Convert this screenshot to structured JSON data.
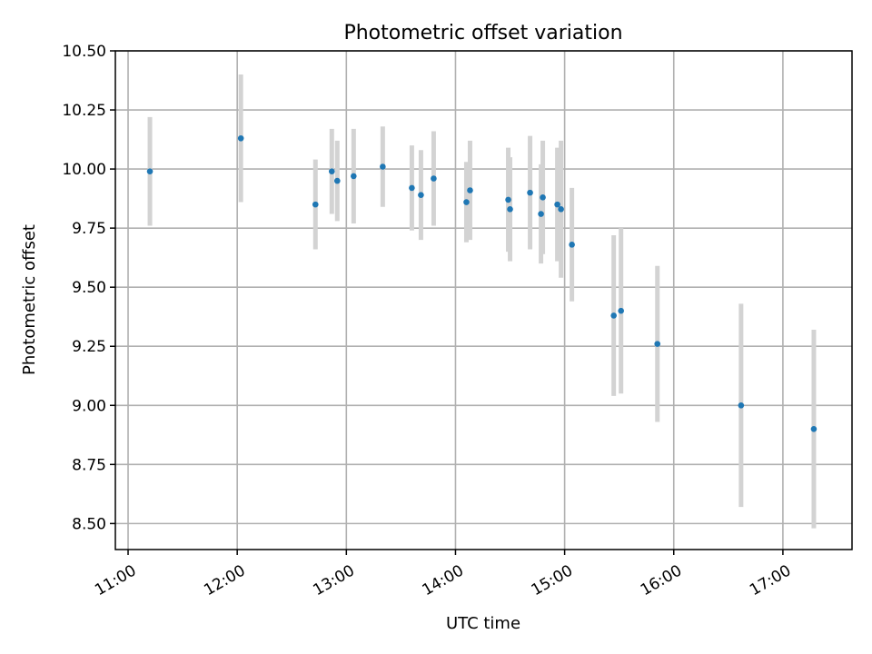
{
  "chart_data": {
    "type": "scatter",
    "title": "Photometric offset variation",
    "xlabel": "UTC time",
    "ylabel": "Photometric offset",
    "x_ticks": [
      "11:00",
      "12:00",
      "13:00",
      "14:00",
      "15:00",
      "16:00",
      "17:00"
    ],
    "y_ticks": [
      "8.50",
      "8.75",
      "9.00",
      "9.25",
      "9.50",
      "9.75",
      "10.00",
      "10.25",
      "10.50"
    ],
    "xlim": [
      "10:53",
      "17:38"
    ],
    "ylim": [
      8.39,
      10.5
    ],
    "grid": true,
    "colors": {
      "point": "#1f77b4",
      "errorbar": "#d3d3d3"
    },
    "points": [
      {
        "x": "11:12",
        "y": 9.99,
        "err": 0.23
      },
      {
        "x": "12:02",
        "y": 10.13,
        "err": 0.27
      },
      {
        "x": "12:43",
        "y": 9.85,
        "err": 0.19
      },
      {
        "x": "12:52",
        "y": 9.99,
        "err": 0.18
      },
      {
        "x": "12:55",
        "y": 9.95,
        "err": 0.17
      },
      {
        "x": "13:04",
        "y": 9.97,
        "err": 0.2
      },
      {
        "x": "13:20",
        "y": 10.01,
        "err": 0.17
      },
      {
        "x": "13:36",
        "y": 9.92,
        "err": 0.18
      },
      {
        "x": "13:41",
        "y": 9.89,
        "err": 0.19
      },
      {
        "x": "13:48",
        "y": 9.96,
        "err": 0.2
      },
      {
        "x": "14:06",
        "y": 9.86,
        "err": 0.17
      },
      {
        "x": "14:08",
        "y": 9.91,
        "err": 0.21
      },
      {
        "x": "14:29",
        "y": 9.87,
        "err": 0.22
      },
      {
        "x": "14:30",
        "y": 9.83,
        "err": 0.22
      },
      {
        "x": "14:41",
        "y": 9.9,
        "err": 0.24
      },
      {
        "x": "14:47",
        "y": 9.81,
        "err": 0.21
      },
      {
        "x": "14:48",
        "y": 9.88,
        "err": 0.24
      },
      {
        "x": "14:56",
        "y": 9.85,
        "err": 0.24
      },
      {
        "x": "14:58",
        "y": 9.83,
        "err": 0.29
      },
      {
        "x": "15:04",
        "y": 9.68,
        "err": 0.24
      },
      {
        "x": "15:27",
        "y": 9.38,
        "err": 0.34
      },
      {
        "x": "15:31",
        "y": 9.4,
        "err": 0.35
      },
      {
        "x": "15:51",
        "y": 9.26,
        "err": 0.33
      },
      {
        "x": "16:37",
        "y": 9.0,
        "err": 0.43
      },
      {
        "x": "17:17",
        "y": 8.9,
        "err": 0.42
      }
    ]
  }
}
